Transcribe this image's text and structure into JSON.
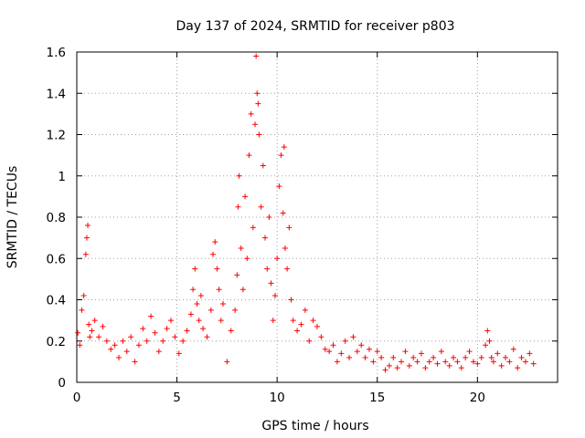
{
  "chart_data": {
    "type": "scatter",
    "title": "Day 137 of 2024, SRMTID for receiver p803",
    "xlabel": "GPS time / hours",
    "ylabel": "SRMTID / TECUs",
    "xlim": [
      0,
      24
    ],
    "ylim": [
      0,
      1.6
    ],
    "xticks": [
      0,
      5,
      10,
      15,
      20
    ],
    "xtick_labels": [
      "0",
      "5",
      "10",
      "15",
      "20"
    ],
    "yticks": [
      0,
      0.2,
      0.4,
      0.6,
      0.8,
      1.0,
      1.2,
      1.4,
      1.6
    ],
    "ytick_labels": [
      "0",
      "0.2",
      "0.4",
      "0.6",
      "0.8",
      "1",
      "1.2",
      "1.4",
      "1.6"
    ],
    "grid": true,
    "marker": "+",
    "color": "#ff0000",
    "series": [
      {
        "name": "SRMTID",
        "x": [
          0.05,
          0.15,
          0.25,
          0.35,
          0.45,
          0.5,
          0.55,
          0.6,
          0.65,
          0.75,
          0.9,
          1.1,
          1.3,
          1.5,
          1.7,
          1.9,
          2.1,
          2.3,
          2.5,
          2.7,
          2.9,
          3.1,
          3.3,
          3.5,
          3.7,
          3.9,
          4.1,
          4.3,
          4.5,
          4.7,
          4.9,
          5.1,
          5.3,
          5.5,
          5.7,
          5.8,
          5.9,
          6.0,
          6.1,
          6.2,
          6.3,
          6.5,
          6.7,
          6.8,
          6.9,
          7.0,
          7.1,
          7.2,
          7.3,
          7.5,
          7.7,
          7.9,
          8.0,
          8.05,
          8.1,
          8.2,
          8.3,
          8.4,
          8.5,
          8.6,
          8.7,
          8.8,
          8.9,
          8.95,
          9.0,
          9.05,
          9.1,
          9.2,
          9.3,
          9.4,
          9.5,
          9.6,
          9.7,
          9.8,
          9.9,
          10.0,
          10.1,
          10.2,
          10.3,
          10.35,
          10.4,
          10.5,
          10.6,
          10.7,
          10.8,
          11.0,
          11.2,
          11.4,
          11.6,
          11.8,
          12.0,
          12.2,
          12.4,
          12.6,
          12.8,
          13.0,
          13.2,
          13.4,
          13.6,
          13.8,
          14.0,
          14.2,
          14.4,
          14.6,
          14.8,
          15.0,
          15.2,
          15.4,
          15.6,
          15.8,
          16.0,
          16.2,
          16.4,
          16.6,
          16.8,
          17.0,
          17.2,
          17.4,
          17.6,
          17.8,
          18.0,
          18.2,
          18.4,
          18.6,
          18.8,
          19.0,
          19.2,
          19.4,
          19.6,
          19.8,
          20.0,
          20.2,
          20.4,
          20.5,
          20.6,
          20.7,
          20.8,
          21.0,
          21.2,
          21.4,
          21.6,
          21.8,
          22.0,
          22.2,
          22.4,
          22.6,
          22.8
        ],
        "y": [
          0.24,
          0.18,
          0.35,
          0.42,
          0.62,
          0.7,
          0.76,
          0.28,
          0.22,
          0.25,
          0.3,
          0.22,
          0.27,
          0.2,
          0.16,
          0.18,
          0.12,
          0.2,
          0.15,
          0.22,
          0.1,
          0.18,
          0.26,
          0.2,
          0.32,
          0.24,
          0.15,
          0.2,
          0.26,
          0.3,
          0.22,
          0.14,
          0.2,
          0.25,
          0.33,
          0.45,
          0.55,
          0.38,
          0.3,
          0.42,
          0.26,
          0.22,
          0.35,
          0.62,
          0.68,
          0.55,
          0.45,
          0.3,
          0.38,
          0.1,
          0.25,
          0.35,
          0.52,
          0.85,
          1.0,
          0.65,
          0.45,
          0.9,
          0.6,
          1.1,
          1.3,
          0.75,
          1.25,
          1.58,
          1.4,
          1.35,
          1.2,
          0.85,
          1.05,
          0.7,
          0.55,
          0.8,
          0.48,
          0.3,
          0.42,
          0.6,
          0.95,
          1.1,
          0.82,
          1.14,
          0.65,
          0.55,
          0.75,
          0.4,
          0.3,
          0.25,
          0.28,
          0.35,
          0.2,
          0.3,
          0.27,
          0.22,
          0.16,
          0.15,
          0.18,
          0.1,
          0.14,
          0.2,
          0.12,
          0.22,
          0.15,
          0.18,
          0.12,
          0.16,
          0.1,
          0.15,
          0.12,
          0.06,
          0.08,
          0.12,
          0.07,
          0.1,
          0.15,
          0.08,
          0.12,
          0.1,
          0.14,
          0.07,
          0.1,
          0.12,
          0.09,
          0.15,
          0.1,
          0.08,
          0.12,
          0.1,
          0.07,
          0.12,
          0.15,
          0.1,
          0.09,
          0.12,
          0.18,
          0.25,
          0.2,
          0.12,
          0.1,
          0.14,
          0.08,
          0.12,
          0.1,
          0.16,
          0.07,
          0.12,
          0.1,
          0.14,
          0.09
        ]
      }
    ]
  }
}
